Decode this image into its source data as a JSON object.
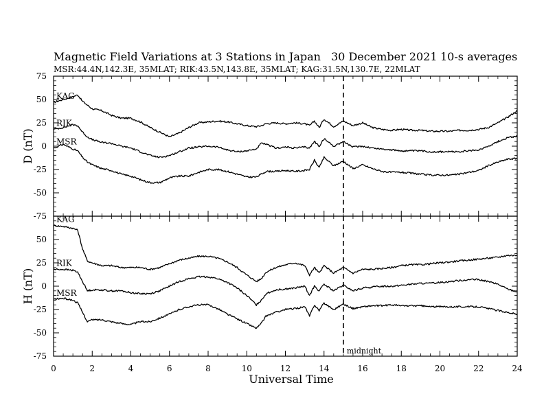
{
  "header": {
    "title": "Magnetic Field Variations at 3 Stations in Japan",
    "date": "30 December 2021",
    "averaging": "10-s averages",
    "stations_line": "MSR:44.4N,142.3E, 35MLAT;  RIK:43.5N,143.8E, 35MLAT;  KAG:31.5N,130.7E, 22MLAT"
  },
  "annotation": {
    "midnight_label": "midnight",
    "midnight_ut": 15
  },
  "colors": {
    "line": "#000000",
    "background": "#ffffff"
  },
  "chart_data": {
    "type": "line",
    "xlabel": "Universal Time",
    "xlim": [
      0,
      24
    ],
    "x_ticks": [
      "0",
      "2",
      "4",
      "6",
      "8",
      "10",
      "12",
      "14",
      "16",
      "18",
      "20",
      "22",
      "24"
    ],
    "x_tick_values": [
      0,
      2,
      4,
      6,
      8,
      10,
      12,
      14,
      16,
      18,
      20,
      22,
      24
    ],
    "x": [
      0,
      0.5,
      1,
      1.25,
      1.5,
      1.75,
      2,
      2.5,
      3,
      3.5,
      4,
      4.5,
      5,
      5.5,
      6,
      6.5,
      7,
      7.5,
      8,
      8.5,
      9,
      9.5,
      10,
      10.5,
      10.75,
      11,
      11.5,
      12,
      12.5,
      13,
      13.25,
      13.5,
      13.75,
      14,
      14.5,
      15,
      15.5,
      16,
      16.5,
      17,
      17.5,
      18,
      18.5,
      19,
      19.5,
      20,
      20.5,
      21,
      21.5,
      22,
      22.5,
      23,
      23.5,
      24
    ],
    "panels": [
      {
        "ylabel": "D (nT)",
        "ylim": [
          -75,
          75
        ],
        "y_ticks": [
          "75",
          "50",
          "25",
          "0",
          "-25",
          "-50",
          "-75"
        ],
        "y_tick_values": [
          75,
          50,
          25,
          0,
          -25,
          -50,
          -75
        ],
        "series": [
          {
            "name": "KAG",
            "values": [
              47,
              50,
              53,
              55,
              48,
              44,
              40,
              38,
              33,
              30,
              30,
              26,
              20,
              15,
              10,
              14,
              20,
              25,
              26,
              27,
              26,
              24,
              22,
              21,
              22,
              24,
              25,
              24,
              25,
              24,
              22,
              27,
              20,
              29,
              21,
              27,
              22,
              25,
              20,
              18,
              17,
              18,
              17,
              17,
              16,
              16,
              16,
              17,
              17,
              18,
              20,
              25,
              31,
              38
            ]
          },
          {
            "name": "RIK",
            "values": [
              18,
              20,
              23,
              22,
              15,
              10,
              7,
              4,
              3,
              0,
              -2,
              -6,
              -10,
              -12,
              -10,
              -6,
              -2,
              -1,
              0,
              -1,
              -4,
              -6,
              -5,
              -3,
              3,
              2,
              -2,
              -1,
              -2,
              -1,
              -2,
              5,
              0,
              8,
              0,
              5,
              -1,
              0,
              -2,
              -3,
              -4,
              -5,
              -5,
              -5,
              -6,
              -6,
              -6,
              -6,
              -5,
              -4,
              0,
              5,
              9,
              11
            ]
          },
          {
            "name": "MSR",
            "values": [
              -2,
              2,
              -3,
              -5,
              -12,
              -17,
              -20,
              -24,
              -26,
              -30,
              -32,
              -36,
              -39,
              -39,
              -34,
              -32,
              -32,
              -28,
              -25,
              -25,
              -27,
              -30,
              -33,
              -33,
              -30,
              -27,
              -27,
              -26,
              -27,
              -26,
              -25,
              -15,
              -23,
              -12,
              -21,
              -16,
              -24,
              -20,
              -24,
              -27,
              -28,
              -28,
              -29,
              -30,
              -31,
              -31,
              -31,
              -30,
              -28,
              -26,
              -21,
              -17,
              -14,
              -13
            ]
          }
        ]
      },
      {
        "ylabel": "H (nT)",
        "ylim": [
          -75,
          75
        ],
        "y_ticks": [
          "75",
          "50",
          "25",
          "0",
          "-25",
          "-50",
          "-75"
        ],
        "y_tick_values": [
          75,
          50,
          25,
          0,
          -25,
          -50,
          -75
        ],
        "series": [
          {
            "name": "KAG",
            "values": [
              65,
              64,
              62,
              60,
              40,
              27,
              25,
              22,
              22,
              20,
              20,
              20,
              18,
              20,
              24,
              28,
              30,
              32,
              32,
              30,
              26,
              20,
              12,
              5,
              8,
              15,
              20,
              23,
              25,
              22,
              12,
              20,
              14,
              22,
              14,
              20,
              14,
              18,
              18,
              19,
              20,
              22,
              23,
              23,
              24,
              25,
              26,
              27,
              28,
              29,
              30,
              31,
              33,
              33
            ]
          },
          {
            "name": "RIK",
            "values": [
              18,
              18,
              17,
              15,
              5,
              -5,
              -4,
              -4,
              -5,
              -5,
              -7,
              -8,
              -8,
              -5,
              0,
              5,
              8,
              10,
              10,
              8,
              4,
              -2,
              -10,
              -20,
              -15,
              -8,
              -4,
              -3,
              -2,
              0,
              -10,
              0,
              -5,
              2,
              -5,
              1,
              -5,
              -2,
              -1,
              0,
              0,
              1,
              2,
              3,
              3,
              4,
              5,
              6,
              7,
              7,
              5,
              2,
              -3,
              -6
            ]
          },
          {
            "name": "MSR",
            "values": [
              -14,
              -13,
              -15,
              -18,
              -28,
              -38,
              -36,
              -36,
              -38,
              -40,
              -41,
              -38,
              -38,
              -34,
              -30,
              -25,
              -22,
              -20,
              -20,
              -24,
              -30,
              -35,
              -40,
              -45,
              -40,
              -32,
              -28,
              -25,
              -24,
              -22,
              -32,
              -20,
              -26,
              -18,
              -25,
              -19,
              -24,
              -22,
              -21,
              -21,
              -20,
              -21,
              -21,
              -21,
              -22,
              -22,
              -22,
              -22,
              -22,
              -22,
              -24,
              -26,
              -28,
              -30
            ]
          }
        ]
      }
    ]
  }
}
